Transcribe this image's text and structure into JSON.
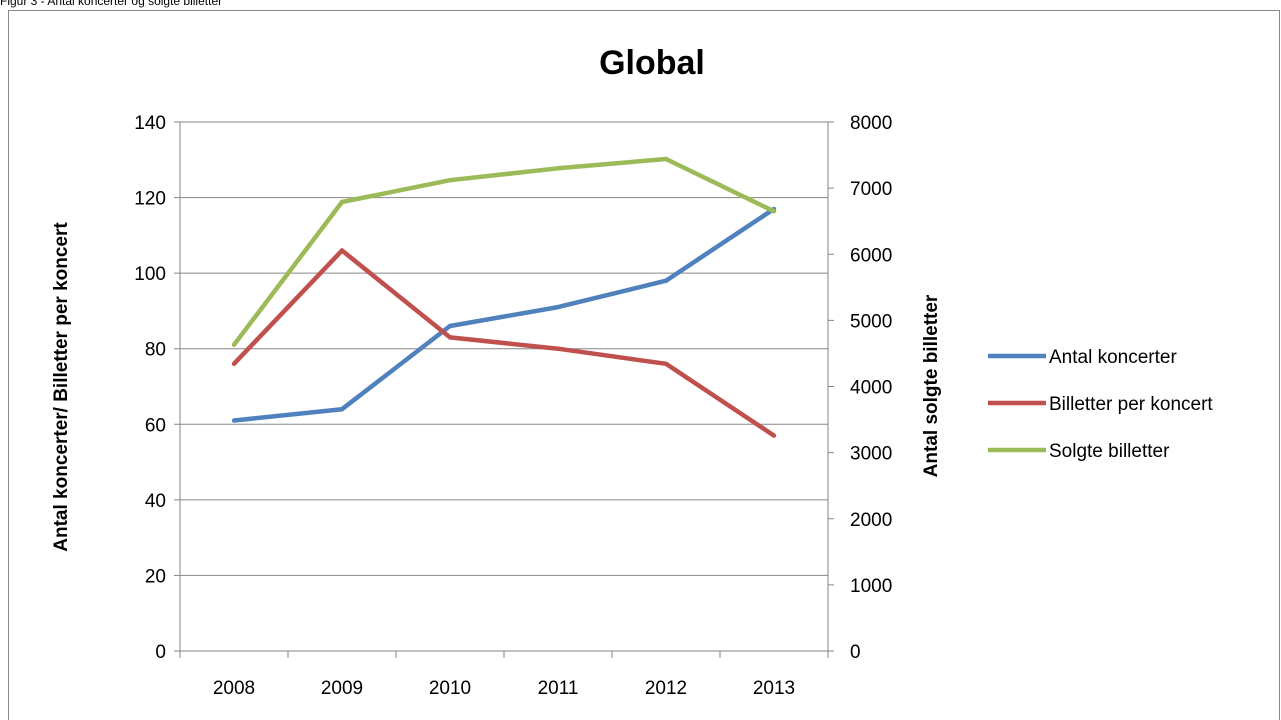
{
  "caption": "Figur 3 - Antal koncerter og solgte billetter",
  "chart_data": {
    "type": "line",
    "title": "Global",
    "categories": [
      "2008",
      "2009",
      "2010",
      "2011",
      "2012",
      "2013"
    ],
    "y_left": {
      "label": "Antal koncerter/ Billetter per koncert",
      "range": [
        0,
        140
      ],
      "ticks": [
        "0",
        "20",
        "40",
        "60",
        "80",
        "100",
        "120",
        "140"
      ]
    },
    "y_right": {
      "label": "Antal solgte billetter",
      "range": [
        0,
        8000
      ],
      "ticks": [
        "0",
        "1000",
        "2000",
        "3000",
        "4000",
        "5000",
        "6000",
        "7000",
        "8000"
      ]
    },
    "grid": true,
    "legend_position": "right",
    "series": [
      {
        "name": "Antal koncerter",
        "axis": "left",
        "color": "#4F81BD",
        "values": [
          61,
          64,
          86,
          91,
          98,
          117
        ]
      },
      {
        "name": "Billetter per koncert",
        "axis": "left",
        "color": "#C0504D",
        "values": [
          76,
          106,
          83,
          80,
          76,
          57
        ]
      },
      {
        "name": "Solgte billetter",
        "axis": "right",
        "color": "#9BBB59",
        "values": [
          4630,
          6790,
          7120,
          7300,
          7440,
          6650
        ]
      }
    ]
  }
}
